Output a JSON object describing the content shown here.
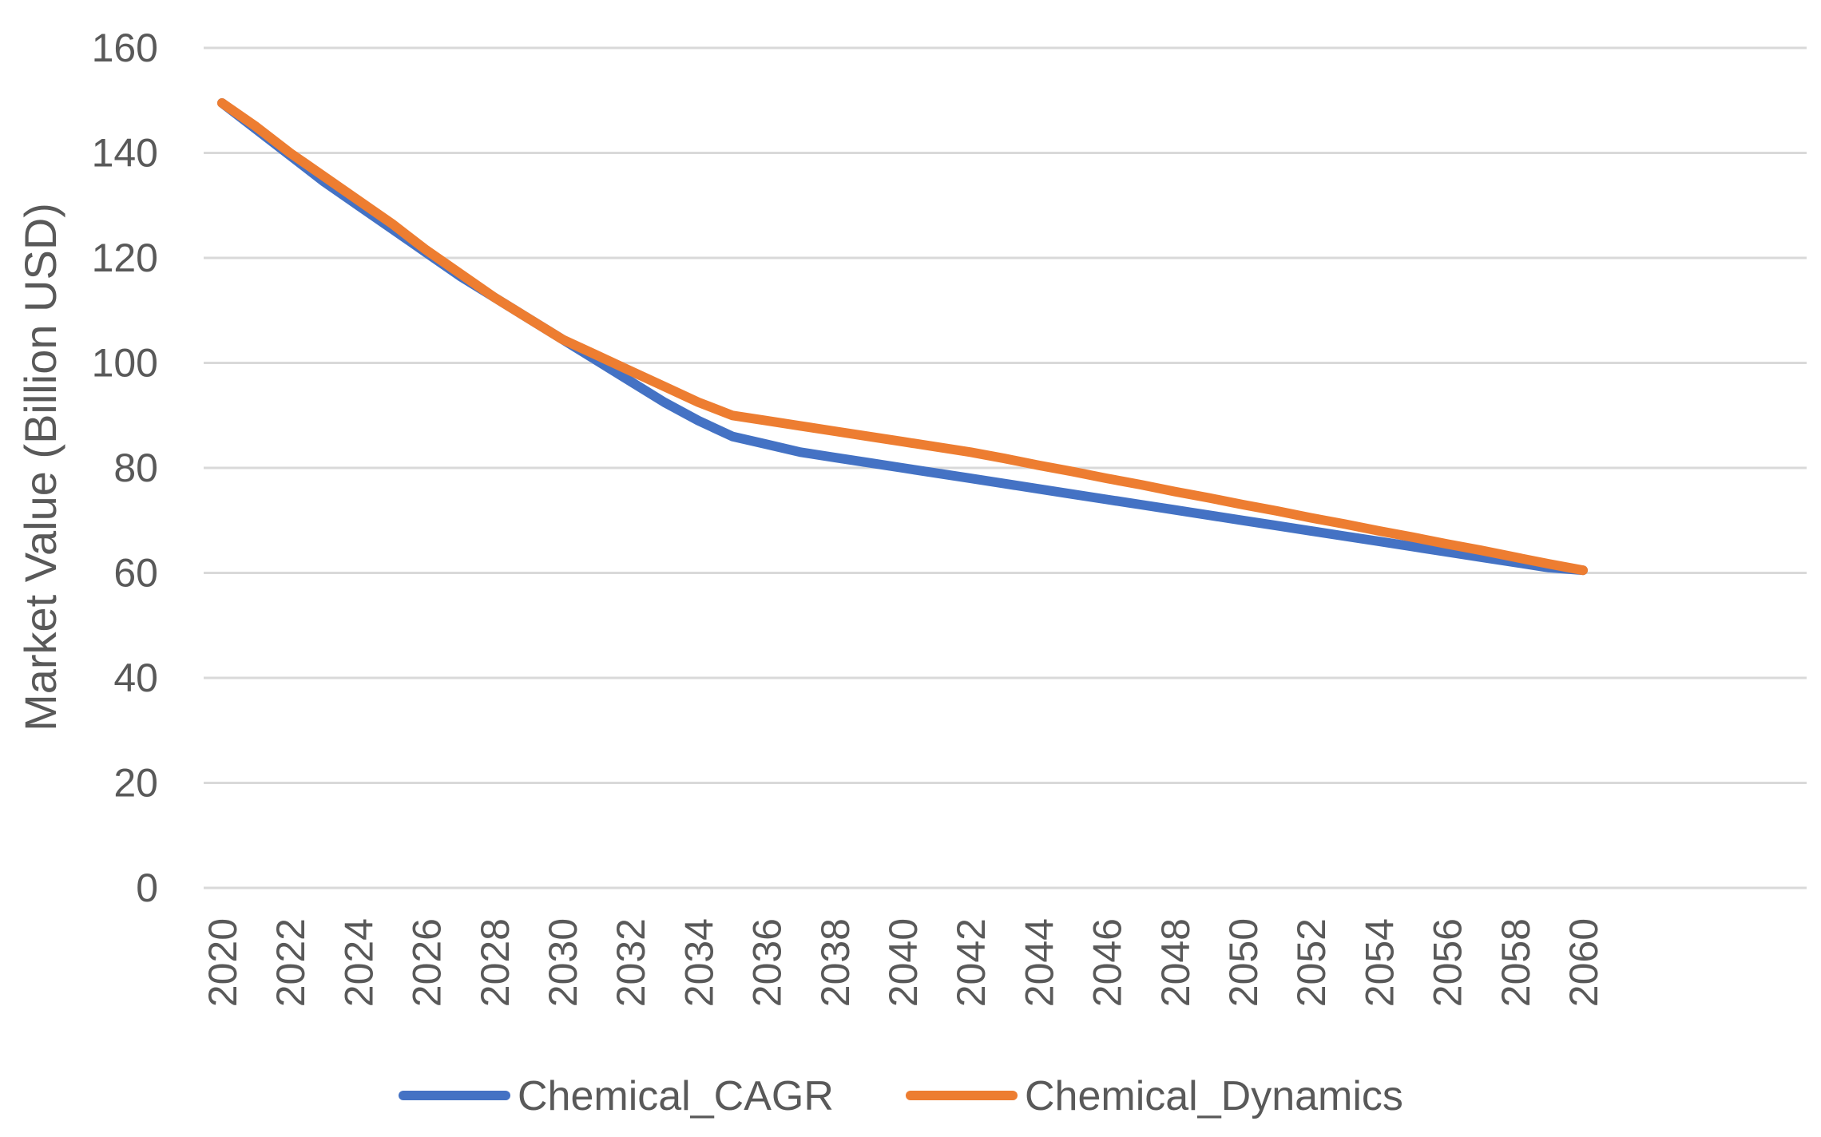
{
  "chart_data": {
    "type": "line",
    "title": "",
    "xlabel": "",
    "ylabel": "Market Value (Billion USD)",
    "x": [
      2020,
      2021,
      2022,
      2023,
      2024,
      2025,
      2026,
      2027,
      2028,
      2029,
      2030,
      2031,
      2032,
      2033,
      2034,
      2035,
      2036,
      2037,
      2038,
      2039,
      2040,
      2041,
      2042,
      2043,
      2044,
      2045,
      2046,
      2047,
      2048,
      2049,
      2050,
      2051,
      2052,
      2053,
      2054,
      2055,
      2056,
      2057,
      2058,
      2059,
      2060
    ],
    "x_tick_labels": [
      "2020",
      "2022",
      "2024",
      "2026",
      "2028",
      "2030",
      "2032",
      "2034",
      "2036",
      "2038",
      "2040",
      "2042",
      "2044",
      "2046",
      "2048",
      "2050",
      "2052",
      "2054",
      "2056",
      "2058",
      "2060"
    ],
    "y_tick_labels": [
      "0",
      "20",
      "40",
      "60",
      "80",
      "100",
      "120",
      "140",
      "160"
    ],
    "ylim": [
      0,
      160
    ],
    "grid": true,
    "legend_position": "bottom",
    "series": [
      {
        "name": "Chemical_CAGR",
        "color": "#4472C4",
        "values": [
          149.5,
          144.5,
          139.5,
          134.5,
          130.0,
          125.5,
          121.0,
          116.5,
          112.5,
          108.5,
          104.5,
          100.5,
          96.5,
          92.5,
          89.0,
          86.0,
          84.5,
          83.0,
          82.0,
          81.0,
          80.0,
          79.0,
          78.0,
          77.0,
          76.0,
          75.0,
          74.0,
          73.0,
          72.0,
          71.0,
          70.0,
          69.0,
          68.0,
          67.0,
          66.0,
          65.0,
          64.0,
          63.0,
          62.0,
          61.0,
          60.5
        ]
      },
      {
        "name": "Chemical_Dynamics",
        "color": "#ED7D31",
        "values": [
          149.5,
          145.0,
          140.0,
          135.5,
          131.0,
          126.5,
          121.5,
          117.0,
          112.5,
          108.5,
          104.5,
          101.5,
          98.5,
          95.5,
          92.5,
          90.0,
          89.0,
          88.0,
          87.0,
          86.0,
          85.0,
          84.0,
          83.0,
          81.8,
          80.5,
          79.3,
          78.0,
          76.8,
          75.5,
          74.3,
          73.0,
          71.8,
          70.5,
          69.3,
          68.0,
          66.8,
          65.5,
          64.3,
          63.0,
          61.7,
          60.5
        ]
      }
    ]
  }
}
